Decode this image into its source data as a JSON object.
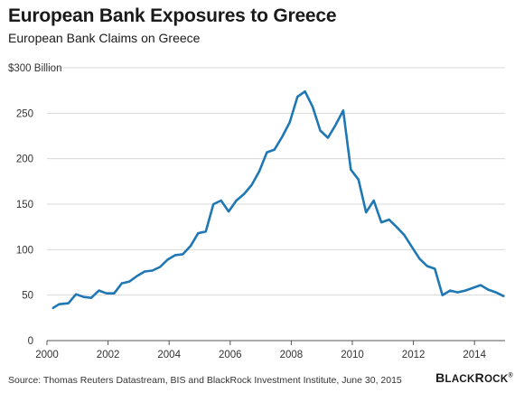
{
  "header": {
    "title": "European Bank Exposures to Greece",
    "subtitle": "European Bank Claims on Greece"
  },
  "footer": {
    "source": "Source: Thomas Reuters Datastream, BIS  and BlackRock Investment Institute, June 30, 2015",
    "brand": "BlackRock®"
  },
  "chart_data": {
    "type": "line",
    "title": "European Bank Exposures to Greece",
    "subtitle": "European Bank Claims on Greece",
    "xlabel": "",
    "ylabel": "",
    "xlim": [
      2000,
      2015
    ],
    "ylim": [
      0,
      300
    ],
    "x_ticks": [
      2000,
      2002,
      2004,
      2006,
      2008,
      2010,
      2012,
      2014
    ],
    "y_ticks": [
      0,
      50,
      100,
      150,
      200,
      250,
      300
    ],
    "y_tick_labels": [
      "0",
      "50",
      "100",
      "150",
      "200",
      "250",
      "$300 Billion"
    ],
    "grid": "horizontal",
    "line_color": "#1f77b4",
    "series": [
      {
        "x": [
          2000.2,
          2000.4,
          2000.7,
          2000.95,
          2001.2,
          2001.45,
          2001.7,
          2001.95,
          2002.2,
          2002.45,
          2002.7,
          2002.95,
          2003.2,
          2003.45,
          2003.7,
          2003.95,
          2004.2,
          2004.45,
          2004.7,
          2004.95,
          2005.2,
          2005.45,
          2005.7,
          2005.95,
          2006.2,
          2006.45,
          2006.7,
          2006.95,
          2007.2,
          2007.45,
          2007.7,
          2007.95,
          2008.2,
          2008.45,
          2008.7,
          2008.95,
          2009.2,
          2009.45,
          2009.7,
          2009.95,
          2010.2,
          2010.45,
          2010.7,
          2010.95,
          2011.2,
          2011.45,
          2011.7,
          2011.95,
          2012.2,
          2012.45,
          2012.7,
          2012.95,
          2013.2,
          2013.45,
          2013.7,
          2013.95,
          2014.2,
          2014.45,
          2014.7,
          2014.95
        ],
        "values": [
          36,
          40,
          41,
          51,
          48,
          47,
          55,
          52,
          52,
          63,
          65,
          71,
          76,
          77,
          81,
          89,
          94,
          95,
          104,
          118,
          120,
          150,
          154,
          142,
          154,
          161,
          171,
          186,
          207,
          210,
          224,
          240,
          268,
          274,
          257,
          231,
          223,
          237,
          253,
          188,
          177,
          141,
          154,
          130,
          133,
          125,
          116,
          103,
          90,
          82,
          79,
          50,
          55,
          53,
          55,
          58,
          61,
          56,
          53,
          49
        ]
      }
    ]
  }
}
